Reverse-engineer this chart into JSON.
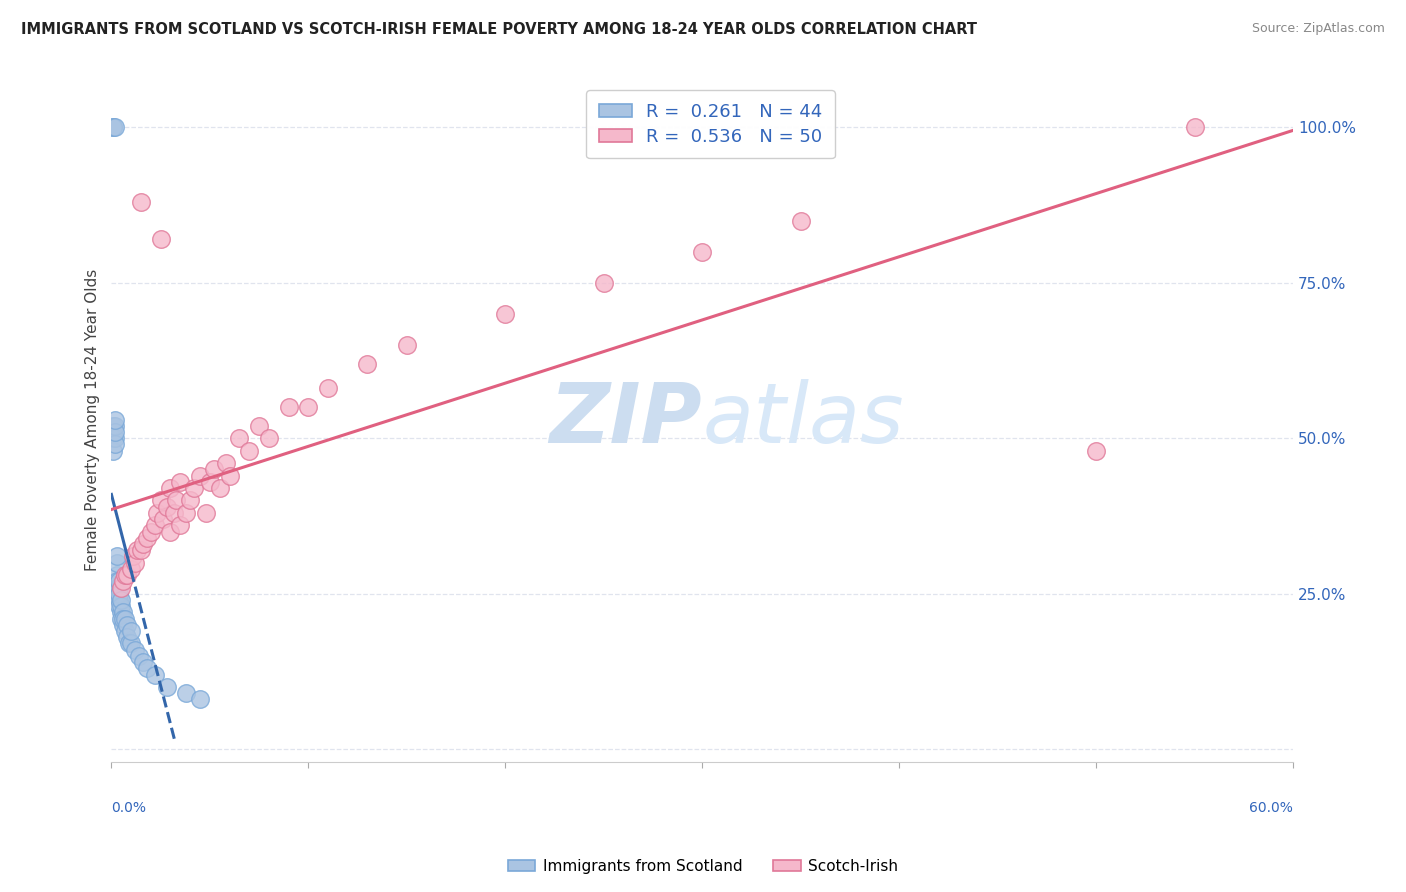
{
  "title": "IMMIGRANTS FROM SCOTLAND VS SCOTCH-IRISH FEMALE POVERTY AMONG 18-24 YEAR OLDS CORRELATION CHART",
  "source": "Source: ZipAtlas.com",
  "ylabel": "Female Poverty Among 18-24 Year Olds",
  "xlim": [
    0.0,
    0.6
  ],
  "ylim": [
    -0.02,
    1.08
  ],
  "y_ticks": [
    0.0,
    0.25,
    0.5,
    0.75,
    1.0
  ],
  "y_tick_labels": [
    "",
    "25.0%",
    "50.0%",
    "75.0%",
    "100.0%"
  ],
  "legend_label1": "Immigrants from Scotland",
  "legend_label2": "Scotch-Irish",
  "blue_color": "#aac4e2",
  "blue_edge": "#7aa8d8",
  "blue_line_color": "#3366aa",
  "pink_color": "#f5b8cb",
  "pink_edge": "#e07898",
  "pink_line_color": "#e06080",
  "watermark_color": "#ccddf0",
  "grid_color": "#e0e4ee",
  "scotland_x": [
    0.001,
    0.001,
    0.001,
    0.002,
    0.002,
    0.002,
    0.002,
    0.002,
    0.003,
    0.003,
    0.003,
    0.003,
    0.003,
    0.003,
    0.004,
    0.004,
    0.004,
    0.004,
    0.004,
    0.005,
    0.005,
    0.005,
    0.005,
    0.006,
    0.006,
    0.006,
    0.007,
    0.007,
    0.008,
    0.008,
    0.009,
    0.01,
    0.01,
    0.012,
    0.014,
    0.016,
    0.018,
    0.022,
    0.028,
    0.038,
    0.045,
    0.001,
    0.001,
    0.002
  ],
  "scotland_y": [
    0.5,
    0.52,
    0.48,
    0.5,
    0.52,
    0.49,
    0.51,
    0.53,
    0.28,
    0.27,
    0.26,
    0.25,
    0.3,
    0.31,
    0.26,
    0.24,
    0.23,
    0.27,
    0.25,
    0.22,
    0.23,
    0.21,
    0.24,
    0.22,
    0.2,
    0.21,
    0.19,
    0.21,
    0.2,
    0.18,
    0.17,
    0.17,
    0.19,
    0.16,
    0.15,
    0.14,
    0.13,
    0.12,
    0.1,
    0.09,
    0.08,
    1.0,
    1.0,
    1.0
  ],
  "scotchirish_x": [
    0.005,
    0.006,
    0.007,
    0.008,
    0.01,
    0.011,
    0.012,
    0.013,
    0.015,
    0.016,
    0.018,
    0.02,
    0.022,
    0.023,
    0.025,
    0.026,
    0.028,
    0.03,
    0.03,
    0.032,
    0.033,
    0.035,
    0.035,
    0.038,
    0.04,
    0.042,
    0.045,
    0.048,
    0.05,
    0.052,
    0.055,
    0.058,
    0.06,
    0.065,
    0.07,
    0.075,
    0.08,
    0.09,
    0.1,
    0.11,
    0.13,
    0.15,
    0.2,
    0.25,
    0.3,
    0.35,
    0.5,
    0.55,
    0.015,
    0.025
  ],
  "scotchirish_y": [
    0.26,
    0.27,
    0.28,
    0.28,
    0.29,
    0.31,
    0.3,
    0.32,
    0.32,
    0.33,
    0.34,
    0.35,
    0.36,
    0.38,
    0.4,
    0.37,
    0.39,
    0.35,
    0.42,
    0.38,
    0.4,
    0.36,
    0.43,
    0.38,
    0.4,
    0.42,
    0.44,
    0.38,
    0.43,
    0.45,
    0.42,
    0.46,
    0.44,
    0.5,
    0.48,
    0.52,
    0.5,
    0.55,
    0.55,
    0.58,
    0.62,
    0.65,
    0.7,
    0.75,
    0.8,
    0.85,
    0.48,
    1.0,
    0.88,
    0.82
  ]
}
